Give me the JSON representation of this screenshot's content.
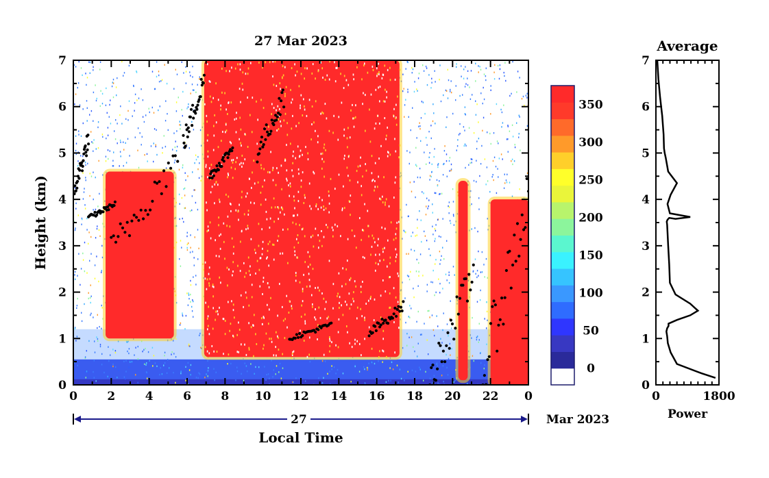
{
  "chart_data": [
    {
      "type": "heatmap",
      "title": "27 Mar 2023",
      "xlabel": "Local Time",
      "ylabel": "Height (km)",
      "x_ticks": [
        "0",
        "2",
        "4",
        "6",
        "8",
        "10",
        "12",
        "14",
        "16",
        "18",
        "20",
        "22",
        "0"
      ],
      "y_ticks": [
        "0",
        "1",
        "2",
        "3",
        "4",
        "5",
        "6",
        "7"
      ],
      "xlim": [
        0,
        24
      ],
      "ylim": [
        0,
        7
      ],
      "date_bar": {
        "day": "27",
        "month_year": "Mar 2023"
      },
      "colorbar": {
        "range": [
          0,
          375
        ],
        "tick_labels": [
          "0",
          "50",
          "100",
          "150",
          "200",
          "250",
          "300",
          "350"
        ],
        "tick_values": [
          0,
          50,
          100,
          150,
          200,
          250,
          300,
          350
        ],
        "colors": [
          "#ffffff",
          "#2a2a9a",
          "#3838c2",
          "#2f36ff",
          "#2f6cff",
          "#3a98ff",
          "#36c4ff",
          "#3af2ff",
          "#5bf6cf",
          "#8cf59c",
          "#b8f46c",
          "#eaf53a",
          "#ffff2a",
          "#ffcf2a",
          "#ff9a2a",
          "#ff6a2a",
          "#ff3a2a",
          "#ff2a2a"
        ]
      },
      "features": {
        "red_regions": [
          {
            "x": [
              1.7,
              5.3
            ],
            "y": [
              1.0,
              4.6
            ]
          },
          {
            "x": [
              6.9,
              17.2
            ],
            "y": [
              0.6,
              7.0
            ]
          },
          {
            "x": [
              20.3,
              20.8
            ],
            "y": [
              0.1,
              4.4
            ]
          },
          {
            "x": [
              22.0,
              24.0
            ],
            "y": [
              0.0,
              4.0
            ]
          }
        ],
        "black_echo_segments": [
          {
            "x": [
              0.0,
              0.8
            ],
            "y": [
              4.1,
              5.3
            ]
          },
          {
            "x": [
              0.8,
              2.2
            ],
            "y": [
              3.6,
              3.9
            ]
          },
          {
            "x": [
              2.0,
              5.5
            ],
            "y": [
              2.9,
              4.9
            ]
          },
          {
            "x": [
              5.8,
              6.9
            ],
            "y": [
              5.2,
              6.6
            ]
          },
          {
            "x": [
              7.2,
              8.4
            ],
            "y": [
              4.5,
              5.1
            ]
          },
          {
            "x": [
              9.7,
              11.1
            ],
            "y": [
              5.0,
              6.2
            ]
          },
          {
            "x": [
              11.4,
              13.6
            ],
            "y": [
              1.0,
              1.3
            ]
          },
          {
            "x": [
              15.6,
              17.4
            ],
            "y": [
              1.1,
              1.7
            ]
          },
          {
            "x": [
              18.8,
              21.1
            ],
            "y": [
              0.1,
              2.4
            ]
          },
          {
            "x": [
              21.6,
              24.0
            ],
            "y": [
              0.2,
              4.1
            ]
          }
        ]
      },
      "colors": {
        "high": "#ff2a2a",
        "background_low": "#3438c4",
        "noise": "#3a7cff"
      }
    },
    {
      "type": "line",
      "title": "Average",
      "xlabel": "Power",
      "x_ticks": [
        "0",
        "1800"
      ],
      "y_ticks": [
        "0",
        "1",
        "2",
        "3",
        "4",
        "5",
        "6",
        "7"
      ],
      "xlim": [
        0,
        1800
      ],
      "ylim": [
        0,
        7
      ],
      "series": [
        {
          "x": [
            1700,
            1300,
            600,
            420,
            340,
            320,
            300,
            320,
            360,
            360,
            600,
            980,
            1200,
            980,
            560,
            400,
            380,
            350,
            330,
            320,
            310,
            330,
            380,
            560,
            980,
            400,
            330,
            420,
            600,
            350,
            280,
            250,
            230,
            220,
            180,
            120,
            70,
            40
          ],
          "y": [
            0.15,
            0.25,
            0.45,
            0.7,
            0.9,
            1.05,
            1.15,
            1.22,
            1.27,
            1.32,
            1.4,
            1.5,
            1.6,
            1.75,
            1.95,
            2.2,
            2.6,
            3.0,
            3.3,
            3.45,
            3.52,
            3.56,
            3.6,
            3.58,
            3.62,
            3.7,
            3.9,
            4.1,
            4.35,
            4.6,
            4.9,
            5.0,
            5.1,
            5.4,
            5.8,
            6.2,
            6.6,
            7.0
          ]
        }
      ],
      "colors": {
        "line": "#000000"
      }
    }
  ]
}
